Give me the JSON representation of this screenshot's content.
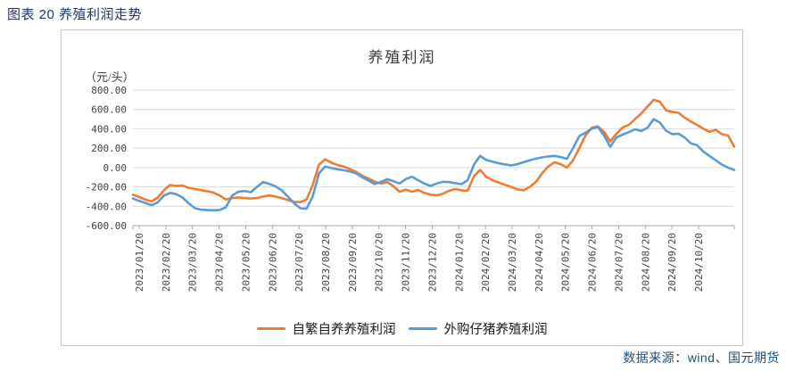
{
  "page": {
    "header_title": "图表 20 养殖利润走势",
    "source_note": "数据来源：wind、国元期货"
  },
  "colors": {
    "header_text": "#1F3864",
    "source_text": "#1F4E79",
    "axis_text": "#404040",
    "gridline": "#D9D9D9",
    "axis_line": "#A6A6A6",
    "frame_border": "#C6C6C6",
    "series_orange": "#ED7D31",
    "series_blue": "#5B9BD5"
  },
  "chart_data": {
    "type": "line",
    "title": "养殖利润",
    "unit_label": "（元/头）",
    "ylim": [
      -600,
      800
    ],
    "ytick_step": 200,
    "grid": true,
    "legend_position": "bottom",
    "ytick_labels": [
      "800.00",
      "600.00",
      "400.00",
      "200.00",
      "0.00",
      "-200.00",
      "-400.00",
      "-600.00"
    ],
    "xtick_labels": [
      "2023/01/20",
      "2023/02/20",
      "2023/03/20",
      "2023/04/20",
      "2023/05/20",
      "2023/06/20",
      "2023/07/20",
      "2023/08/20",
      "2023/09/20",
      "2023/10/20",
      "2023/11/20",
      "2023/12/20",
      "2024/01/20",
      "2024/02/20",
      "2024/03/20",
      "2024/04/20",
      "2024/05/20",
      "2024/06/20",
      "2024/07/20",
      "2024/08/20",
      "2024/09/20",
      "2024/10/20"
    ],
    "x_frequency": "weekly",
    "series": [
      {
        "name": "自繁自养养殖利润",
        "color": "#ED7D31",
        "values": [
          -280,
          -305,
          -330,
          -350,
          -310,
          -235,
          -180,
          -190,
          -185,
          -210,
          -222,
          -233,
          -245,
          -258,
          -290,
          -330,
          -315,
          -310,
          -315,
          -320,
          -315,
          -300,
          -288,
          -300,
          -315,
          -335,
          -355,
          -358,
          -330,
          -180,
          30,
          85,
          50,
          25,
          10,
          -15,
          -45,
          -85,
          -115,
          -145,
          -165,
          -150,
          -190,
          -250,
          -228,
          -250,
          -232,
          -262,
          -280,
          -288,
          -270,
          -240,
          -222,
          -235,
          -240,
          -90,
          -25,
          -95,
          -130,
          -155,
          -178,
          -200,
          -225,
          -235,
          -200,
          -150,
          -60,
          10,
          55,
          35,
          0,
          75,
          200,
          330,
          410,
          425,
          370,
          270,
          350,
          414,
          440,
          500,
          560,
          630,
          700,
          680,
          590,
          575,
          565,
          515,
          475,
          440,
          400,
          370,
          390,
          345,
          330,
          215
        ]
      },
      {
        "name": "外购仔猪养殖利润",
        "color": "#5B9BD5",
        "values": [
          -320,
          -345,
          -365,
          -390,
          -360,
          -290,
          -262,
          -275,
          -310,
          -370,
          -420,
          -435,
          -440,
          -442,
          -438,
          -410,
          -290,
          -250,
          -242,
          -255,
          -200,
          -150,
          -170,
          -195,
          -235,
          -300,
          -370,
          -420,
          -425,
          -300,
          -60,
          10,
          -5,
          -18,
          -28,
          -40,
          -60,
          -100,
          -135,
          -170,
          -150,
          -120,
          -140,
          -165,
          -120,
          -95,
          -130,
          -165,
          -190,
          -165,
          -148,
          -150,
          -162,
          -172,
          -130,
          30,
          120,
          78,
          60,
          45,
          33,
          22,
          35,
          55,
          75,
          92,
          105,
          115,
          120,
          108,
          90,
          200,
          325,
          360,
          400,
          418,
          330,
          215,
          310,
          340,
          365,
          395,
          377,
          410,
          500,
          465,
          380,
          345,
          350,
          310,
          250,
          230,
          165,
          120,
          75,
          30,
          0,
          -25
        ]
      }
    ]
  }
}
